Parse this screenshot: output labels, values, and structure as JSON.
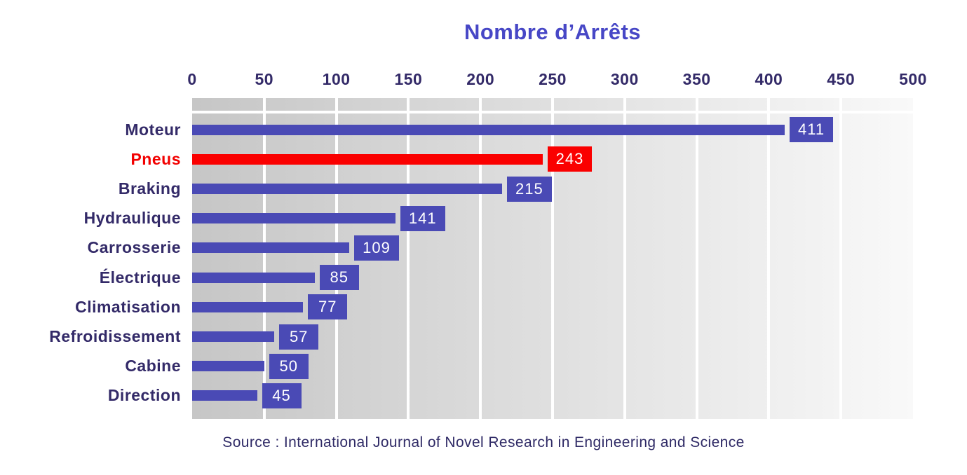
{
  "chart_data": {
    "type": "bar",
    "orientation": "horizontal",
    "title": "Nombre d’Arrêts",
    "categories": [
      "Moteur",
      "Pneus",
      "Braking",
      "Hydraulique",
      "Carrosserie",
      "Électrique",
      "Climatisation",
      "Refroidissement",
      "Cabine",
      "Direction"
    ],
    "values": [
      411,
      243,
      215,
      141,
      109,
      85,
      77,
      57,
      50,
      45
    ],
    "highlight_category": "Pneus",
    "x_ticks": [
      0,
      50,
      100,
      150,
      200,
      250,
      300,
      350,
      400,
      450,
      500
    ],
    "xlim": [
      0,
      500
    ],
    "grid": "vertical-white-gridlines",
    "value_labels": "boxed-at-bar-end",
    "legend": "none",
    "source": "Source : International Journal of Novel Research in Engineering and Science"
  },
  "colors": {
    "bar": "#4a4ab5",
    "highlight_bar": "#fa0000",
    "highlight_label": "#f20000",
    "title_text": "#4747c6",
    "axis_text": "#332a68",
    "category_text": "#332a68",
    "value_text": "#ffffff",
    "source_text": "#2f2a66",
    "plot_gradient_left": "#c6c6c6",
    "plot_gradient_right": "#f9f9f9",
    "gridline": "#ffffff"
  }
}
